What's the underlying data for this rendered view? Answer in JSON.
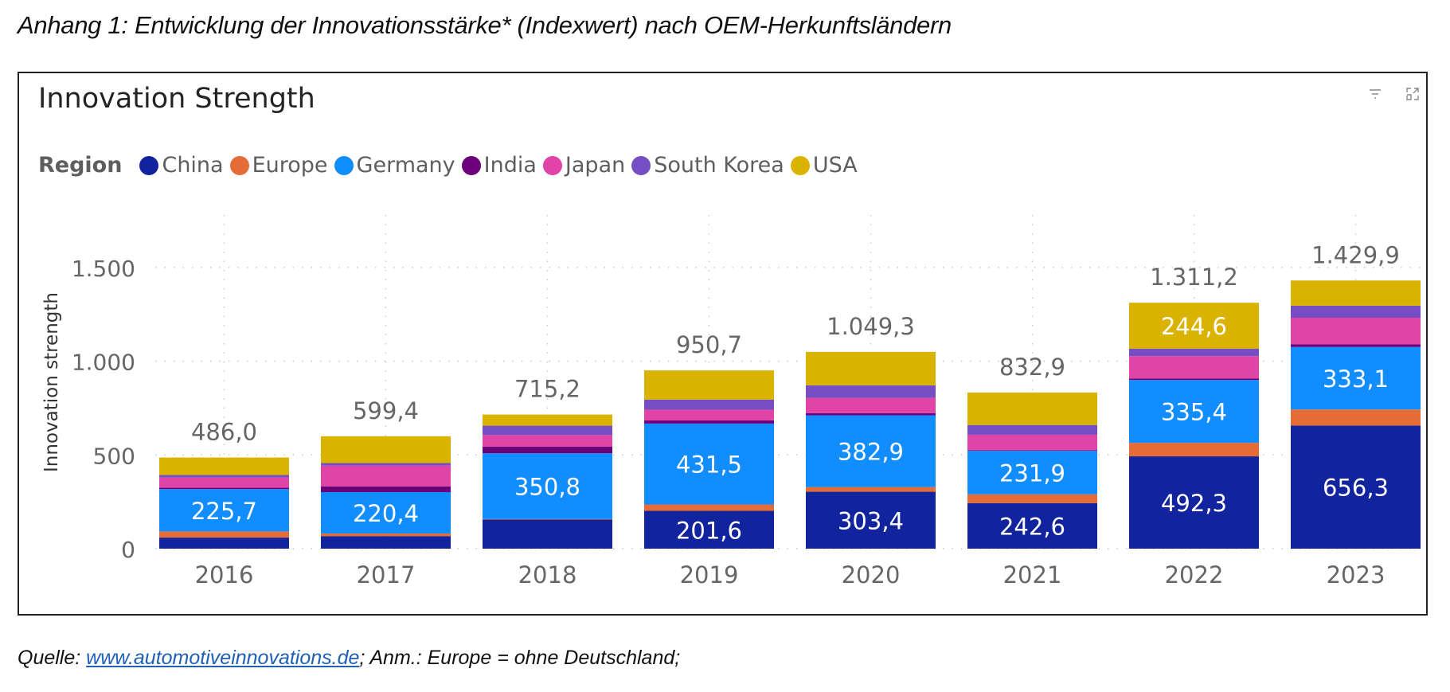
{
  "caption": "Anhang 1: Entwicklung der Innovationsstärke* (Indexwert) nach OEM-Herkunftsländern",
  "icons": {
    "filter": "filter-icon",
    "focus": "focus-mode-icon"
  },
  "source": {
    "prefix": "Quelle: ",
    "link": "www.automotiveinnovations.de",
    "suffix": "; Anm.: Europe = ohne Deutschland;"
  },
  "chart_data": {
    "type": "bar",
    "stacked": true,
    "title": "Innovation Strength",
    "legend_title": "Region",
    "legend_position": "top-left",
    "xlabel": "",
    "ylabel": "Innovation strength",
    "ylim": [
      0,
      1700
    ],
    "yticks": [
      0,
      500,
      1000,
      1500
    ],
    "ytick_labels": [
      "0",
      "500",
      "1.000",
      "1.500"
    ],
    "grid": true,
    "categories": [
      "2016",
      "2017",
      "2018",
      "2019",
      "2020",
      "2021",
      "2022",
      "2023"
    ],
    "series": [
      {
        "name": "China",
        "color": "#12239e",
        "values": [
          59,
          67,
          155,
          201.6,
          303.4,
          242.6,
          492.3,
          656.3
        ],
        "labels": [
          null,
          null,
          null,
          "201,6",
          "303,4",
          "242,6",
          "492,3",
          "656,3"
        ]
      },
      {
        "name": "Europe",
        "color": "#e66c37",
        "values": [
          33,
          14,
          3,
          34,
          25,
          47,
          72,
          86
        ],
        "labels": [
          null,
          null,
          null,
          null,
          null,
          null,
          null,
          null
        ]
      },
      {
        "name": "Germany",
        "color": "#118dff",
        "values": [
          225.7,
          220.4,
          350.8,
          431.5,
          382.9,
          231.9,
          335.4,
          333.1
        ],
        "labels": [
          "225,7",
          "220,4",
          "350,8",
          "431,5",
          "382,9",
          "231,9",
          "335,4",
          "333,1"
        ]
      },
      {
        "name": "India",
        "color": "#6b007b",
        "values": [
          7,
          31,
          35,
          17,
          11,
          4,
          7,
          14
        ],
        "labels": [
          null,
          null,
          null,
          null,
          null,
          null,
          null,
          null
        ]
      },
      {
        "name": "Japan",
        "color": "#e044a7",
        "values": [
          54,
          110,
          62,
          57,
          82,
          82,
          120,
          142
        ],
        "labels": [
          null,
          null,
          null,
          null,
          null,
          null,
          null,
          null
        ]
      },
      {
        "name": "South Korea",
        "color": "#744ec2",
        "values": [
          14,
          14,
          50,
          54,
          67,
          52,
          40,
          64
        ],
        "labels": [
          null,
          null,
          null,
          null,
          null,
          null,
          null,
          null
        ]
      },
      {
        "name": "USA",
        "color": "#d9b300",
        "values": [
          93.3,
          143,
          59.4,
          155.6,
          178,
          173.4,
          244.6,
          134.5
        ],
        "labels": [
          null,
          null,
          null,
          null,
          null,
          null,
          "244,6",
          null
        ]
      }
    ],
    "totals": [
      486.0,
      599.4,
      715.2,
      950.7,
      1049.3,
      832.9,
      1311.2,
      1429.9
    ],
    "total_labels": [
      "486,0",
      "599,4",
      "715,2",
      "950,7",
      "1.049,3",
      "832,9",
      "1.311,2",
      "1.429,9"
    ]
  }
}
